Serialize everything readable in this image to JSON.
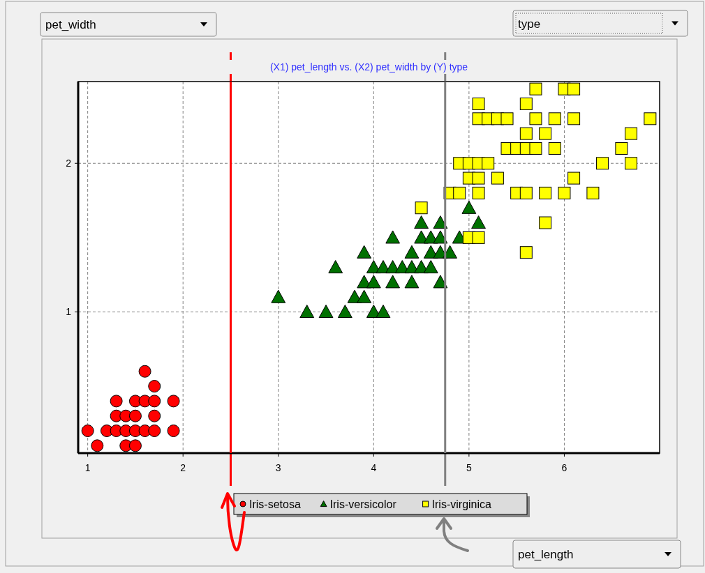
{
  "chart_data": {
    "type": "scatter",
    "title": "(X1) pet_length vs. (X2) pet_width by (Y) type",
    "annotations": [
      "pet_width",
      "type",
      "pet_length"
    ],
    "xlim": [
      0.9,
      7.0
    ],
    "ylim": [
      0.05,
      2.55
    ],
    "xticks": [
      1,
      2,
      3,
      4,
      5,
      6
    ],
    "yticks": [
      1,
      2
    ],
    "grid": true,
    "legend": "bottom",
    "ref_lines": [
      {
        "axis": "x",
        "value": 2.5,
        "color": "#ff0000"
      },
      {
        "axis": "x",
        "value": 4.75,
        "color": "#808080"
      }
    ],
    "series": [
      {
        "name": "Iris-setosa",
        "color": "#ff0000",
        "marker": "circle",
        "x": [
          1.0,
          1.1,
          1.2,
          1.3,
          1.3,
          1.3,
          1.4,
          1.4,
          1.4,
          1.5,
          1.5,
          1.5,
          1.5,
          1.6,
          1.6,
          1.6,
          1.7,
          1.7,
          1.7,
          1.7,
          1.9,
          1.9
        ],
        "values": [
          0.2,
          0.1,
          0.2,
          0.2,
          0.3,
          0.4,
          0.1,
          0.2,
          0.3,
          0.1,
          0.2,
          0.3,
          0.4,
          0.2,
          0.4,
          0.6,
          0.2,
          0.3,
          0.4,
          0.5,
          0.2,
          0.4
        ]
      },
      {
        "name": "Iris-versicolor",
        "color": "#007000",
        "marker": "triangle",
        "x": [
          3.0,
          3.3,
          3.5,
          3.6,
          3.7,
          3.8,
          3.9,
          3.9,
          3.9,
          4.0,
          4.0,
          4.0,
          4.1,
          4.1,
          4.2,
          4.2,
          4.2,
          4.3,
          4.4,
          4.4,
          4.4,
          4.5,
          4.5,
          4.5,
          4.6,
          4.6,
          4.6,
          4.7,
          4.7,
          4.7,
          4.7,
          4.8,
          4.9,
          5.0,
          5.1
        ],
        "values": [
          1.1,
          1.0,
          1.0,
          1.3,
          1.0,
          1.1,
          1.1,
          1.2,
          1.4,
          1.0,
          1.2,
          1.3,
          1.0,
          1.3,
          1.2,
          1.3,
          1.5,
          1.3,
          1.2,
          1.3,
          1.4,
          1.3,
          1.5,
          1.6,
          1.3,
          1.4,
          1.5,
          1.2,
          1.4,
          1.5,
          1.6,
          1.4,
          1.5,
          1.7,
          1.6
        ]
      },
      {
        "name": "Iris-virginica",
        "color": "#ffff00",
        "marker": "square",
        "x": [
          4.5,
          4.8,
          4.9,
          4.9,
          5.0,
          5.0,
          5.0,
          5.1,
          5.1,
          5.1,
          5.1,
          5.1,
          5.1,
          5.2,
          5.2,
          5.3,
          5.3,
          5.4,
          5.4,
          5.5,
          5.5,
          5.6,
          5.6,
          5.6,
          5.6,
          5.6,
          5.7,
          5.7,
          5.7,
          5.8,
          5.8,
          5.8,
          5.9,
          5.9,
          6.0,
          6.0,
          6.1,
          6.1,
          6.1,
          6.3,
          6.4,
          6.6,
          6.7,
          6.7,
          6.9
        ],
        "values": [
          1.7,
          1.8,
          1.8,
          2.0,
          1.5,
          1.9,
          2.0,
          1.5,
          1.8,
          1.9,
          2.0,
          2.3,
          2.4,
          2.0,
          2.3,
          1.9,
          2.3,
          2.1,
          2.3,
          1.8,
          2.1,
          1.4,
          1.8,
          2.1,
          2.2,
          2.4,
          2.1,
          2.3,
          2.5,
          1.6,
          1.8,
          2.2,
          2.1,
          2.3,
          1.8,
          2.5,
          1.9,
          2.3,
          2.5,
          1.8,
          2.0,
          2.1,
          2.0,
          2.2,
          2.3
        ]
      }
    ]
  }
}
